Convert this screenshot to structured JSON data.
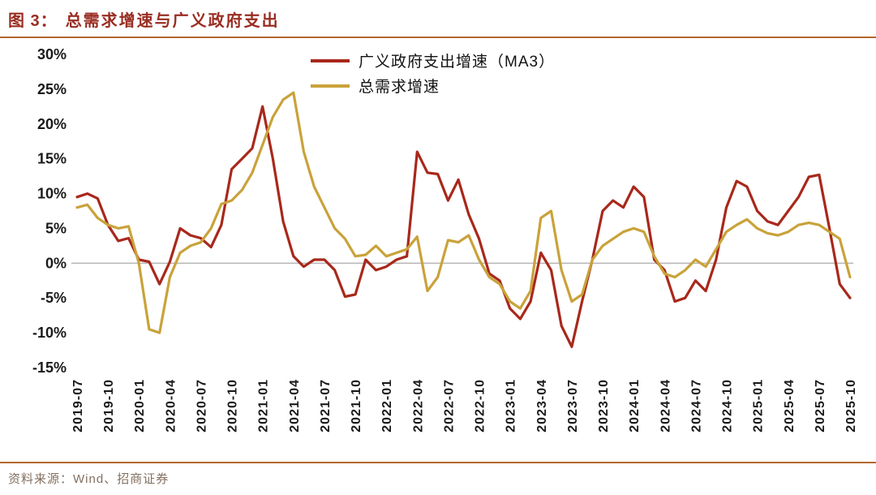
{
  "header": {
    "figure_label": "图 3：",
    "title": "总需求增速与广义政府支出"
  },
  "footer": {
    "source_label": "资料来源：",
    "source_text": "Wind、招商证券"
  },
  "colors": {
    "title": "#9a2d22",
    "rule": "#b4682e",
    "source": "#837060",
    "tick": "#1a1a1a",
    "zero_line": "#b5b5b5",
    "series_red": "#a8281b",
    "series_gold": "#c9a23a"
  },
  "chart_data": {
    "type": "line",
    "title": "总需求增速与广义政府支出",
    "xlabel": "",
    "ylabel": "",
    "ylim": [
      -15,
      30
    ],
    "ytick_step": 5,
    "ytick_suffix": "%",
    "xtick_every": 3,
    "grid": false,
    "legend_position": "top-center",
    "x": [
      "2019-07",
      "2019-08",
      "2019-09",
      "2019-10",
      "2019-11",
      "2019-12",
      "2020-01",
      "2020-02",
      "2020-03",
      "2020-04",
      "2020-05",
      "2020-06",
      "2020-07",
      "2020-08",
      "2020-09",
      "2020-10",
      "2020-11",
      "2020-12",
      "2021-01",
      "2021-02",
      "2021-03",
      "2021-04",
      "2021-05",
      "2021-06",
      "2021-07",
      "2021-08",
      "2021-09",
      "2021-10",
      "2021-11",
      "2021-12",
      "2022-01",
      "2022-02",
      "2022-03",
      "2022-04",
      "2022-05",
      "2022-06",
      "2022-07",
      "2022-08",
      "2022-09",
      "2022-10",
      "2022-11",
      "2022-12",
      "2023-01",
      "2023-02",
      "2023-03",
      "2023-04",
      "2023-05",
      "2023-06",
      "2023-07",
      "2023-08",
      "2023-09",
      "2023-10",
      "2023-11",
      "2023-12",
      "2024-01",
      "2024-02",
      "2024-03",
      "2024-04",
      "2024-05",
      "2024-06",
      "2024-07",
      "2024-08",
      "2024-09",
      "2024-10",
      "2024-11",
      "2024-12",
      "2025-01",
      "2025-02",
      "2025-03",
      "2025-04",
      "2025-05",
      "2025-06",
      "2025-07",
      "2025-08",
      "2025-09",
      "2025-10"
    ],
    "series": [
      {
        "id": "gov-spending-ma3",
        "name": "广义政府支出增速（MA3）",
        "color": "#a8281b",
        "values": [
          9.5,
          10,
          9.3,
          5.5,
          3.2,
          3.6,
          0.5,
          0.2,
          -3,
          0.2,
          5,
          4,
          3.6,
          2.3,
          5.5,
          13.5,
          15,
          16.5,
          22.5,
          15,
          6,
          1,
          -0.5,
          0.5,
          0.5,
          -1,
          -4.8,
          -4.5,
          0.5,
          -1,
          -0.5,
          0.5,
          1,
          16,
          13,
          12.8,
          9,
          12,
          7,
          3.5,
          -1.5,
          -2.5,
          -6.5,
          -8,
          -5.5,
          1.5,
          -1,
          -9,
          -12,
          -5.5,
          0.5,
          7.5,
          9,
          8,
          11,
          9.5,
          0.5,
          -1,
          -5.5,
          -5,
          -2.5,
          -4,
          0.5,
          8,
          11.8,
          11,
          7.5,
          6,
          5.5,
          7.5,
          9.5,
          12.4,
          12.7,
          5,
          -3,
          -5
        ]
      },
      {
        "id": "total-demand",
        "name": "总需求增速",
        "color": "#c9a23a",
        "values": [
          8,
          8.4,
          6.5,
          5.5,
          5,
          5.3,
          0,
          -9.5,
          -10,
          -2,
          1.5,
          2.5,
          3,
          5,
          8.5,
          9,
          10.5,
          13,
          17,
          21,
          23.5,
          24.5,
          16,
          11,
          8,
          5,
          3.5,
          1,
          1.2,
          2.5,
          1,
          1.5,
          2,
          3.8,
          -4,
          -2,
          3.3,
          3,
          4,
          0.5,
          -2,
          -3,
          -5.5,
          -6.5,
          -4,
          6.5,
          7.5,
          -1,
          -5.5,
          -4.5,
          0.5,
          2.5,
          3.5,
          4.5,
          5,
          4.5,
          1,
          -1.5,
          -2,
          -1,
          0.5,
          -0.5,
          2,
          4.5,
          5.5,
          6.3,
          5,
          4.3,
          4,
          4.5,
          5.5,
          5.8,
          5.5,
          4.5,
          3.5,
          -2
        ]
      }
    ]
  }
}
